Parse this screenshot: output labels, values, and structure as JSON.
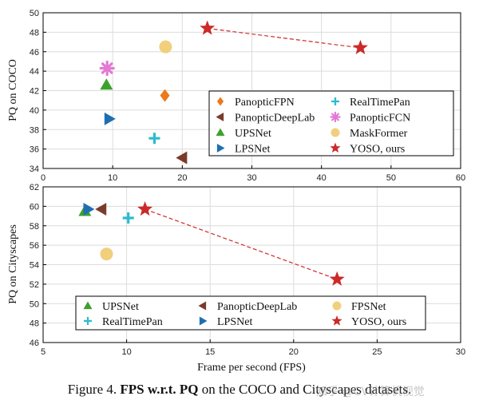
{
  "colors": {
    "PanopticFPN": "#ec7a1c",
    "PanopticDeepLab": "#7a3b2a",
    "UPSNet": "#3da12e",
    "LPSNet": "#1f6fb0",
    "RealTimePan": "#2bbccc",
    "PanopticFCN": "#e27ad4",
    "MaskFormer": "#f1cf7c",
    "FPSNet": "#f1cf7c",
    "YOSO": "#cc2a2a"
  },
  "chart_data": [
    {
      "type": "scatter",
      "ylabel": "PQ on COCO",
      "xlabel": "",
      "xlim": [
        0,
        60
      ],
      "ylim": [
        34,
        50
      ],
      "xticks": [
        0,
        10,
        20,
        30,
        40,
        50,
        60
      ],
      "yticks": [
        34,
        36,
        38,
        40,
        42,
        44,
        46,
        48,
        50
      ],
      "grid": true,
      "legend_position": "lower-right",
      "legend_columns": 2,
      "series": [
        {
          "name": "PanopticFPN",
          "marker": "diamond",
          "points": [
            [
              17.5,
              41.5
            ]
          ]
        },
        {
          "name": "PanopticDeepLab",
          "marker": "triangle-left",
          "points": [
            [
              20.0,
              35.1
            ]
          ]
        },
        {
          "name": "UPSNet",
          "marker": "triangle-up",
          "points": [
            [
              9.1,
              42.6
            ]
          ]
        },
        {
          "name": "LPSNet",
          "marker": "triangle-right",
          "points": [
            [
              9.5,
              39.1
            ]
          ]
        },
        {
          "name": "RealTimePan",
          "marker": "plus",
          "points": [
            [
              16.0,
              37.1
            ]
          ]
        },
        {
          "name": "PanopticFCN",
          "marker": "asterisk",
          "points": [
            [
              9.2,
              44.3
            ]
          ]
        },
        {
          "name": "MaskFormer",
          "marker": "circle",
          "points": [
            [
              17.6,
              46.5
            ]
          ]
        },
        {
          "name": "YOSO, ours",
          "marker": "star",
          "connected": true,
          "points": [
            [
              23.6,
              48.4
            ],
            [
              45.6,
              46.4
            ]
          ]
        }
      ]
    },
    {
      "type": "scatter",
      "ylabel": "PQ on Cityscapes",
      "xlabel": "Frame per second (FPS)",
      "xlim": [
        5,
        30
      ],
      "ylim": [
        46,
        62
      ],
      "xticks": [
        5,
        10,
        15,
        20,
        25,
        30
      ],
      "yticks": [
        46,
        48,
        50,
        52,
        54,
        56,
        58,
        60,
        62
      ],
      "grid": true,
      "legend_position": "bottom",
      "legend_columns": 3,
      "series": [
        {
          "name": "UPSNet",
          "marker": "triangle-up",
          "points": [
            [
              7.5,
              59.5
            ]
          ]
        },
        {
          "name": "PanopticDeepLab",
          "marker": "triangle-left",
          "points": [
            [
              8.5,
              59.7
            ]
          ]
        },
        {
          "name": "FPSNet",
          "marker": "circle",
          "points": [
            [
              8.8,
              55.1
            ]
          ]
        },
        {
          "name": "RealTimePan",
          "marker": "plus",
          "points": [
            [
              10.1,
              58.8
            ]
          ]
        },
        {
          "name": "LPSNet",
          "marker": "triangle-right",
          "points": [
            [
              7.7,
              59.7
            ]
          ]
        },
        {
          "name": "YOSO, ours",
          "marker": "star",
          "connected": true,
          "points": [
            [
              11.1,
              59.7
            ],
            [
              22.6,
              52.5
            ]
          ]
        }
      ]
    }
  ],
  "caption": {
    "prefix": "Figure 4. ",
    "bold": "FPS w.r.t. PQ",
    "suffix": " on the COCO and Cityscapes datasets."
  },
  "watermark": "知乎 @CV计算机视觉"
}
